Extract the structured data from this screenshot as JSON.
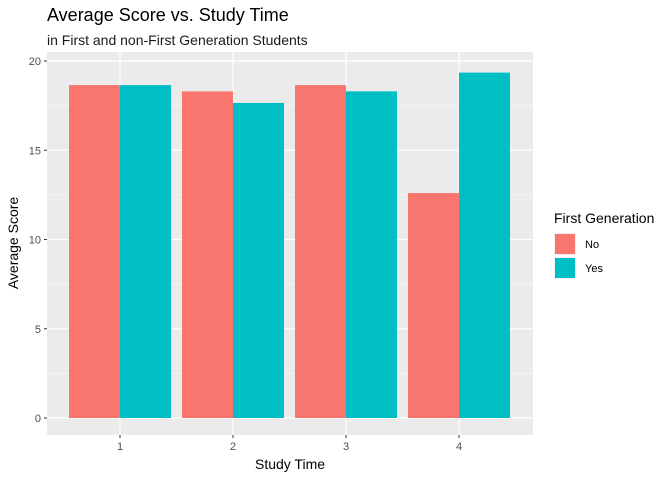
{
  "chart_data": {
    "type": "bar",
    "title": "Average Score vs. Study Time",
    "subtitle": "in First and non-First Generation Students",
    "xlabel": "Study Time",
    "ylabel": "Average Score",
    "categories": [
      "1",
      "2",
      "3",
      "4"
    ],
    "ylim": [
      0,
      20
    ],
    "yticks": [
      "0",
      "5",
      "10",
      "15",
      "20"
    ],
    "grid": true,
    "legend": {
      "title": "First Generation",
      "placement": "right"
    },
    "series": [
      {
        "name": "No",
        "color": "#F8766D",
        "values": [
          18.65,
          18.3,
          18.65,
          12.6
        ]
      },
      {
        "name": "Yes",
        "color": "#00BFC4",
        "values": [
          18.65,
          17.65,
          18.3,
          19.35
        ]
      }
    ]
  }
}
